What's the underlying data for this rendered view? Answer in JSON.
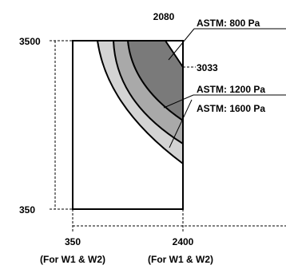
{
  "colors": {
    "outline": "#000000",
    "guide": "#000000",
    "band_800": "#7a7a7a",
    "band_1200": "#a9a9a9",
    "band_1600": "#d3d3d3"
  },
  "labels": {
    "y_top": "3500",
    "y_bottom": "350",
    "x_left": "350",
    "x_right": "2400",
    "x_left_note": "(For W1 & W2)",
    "x_right_note": "(For W1 & W2)",
    "top_marker": "2080",
    "side_marker": "3033"
  },
  "regions": [
    {
      "id": "astm-800",
      "label": "ASTM: 800 Pa"
    },
    {
      "id": "astm-1200",
      "label": "ASTM: 1200 Pa"
    },
    {
      "id": "astm-1600",
      "label": "ASTM: 1600 Pa"
    }
  ]
}
